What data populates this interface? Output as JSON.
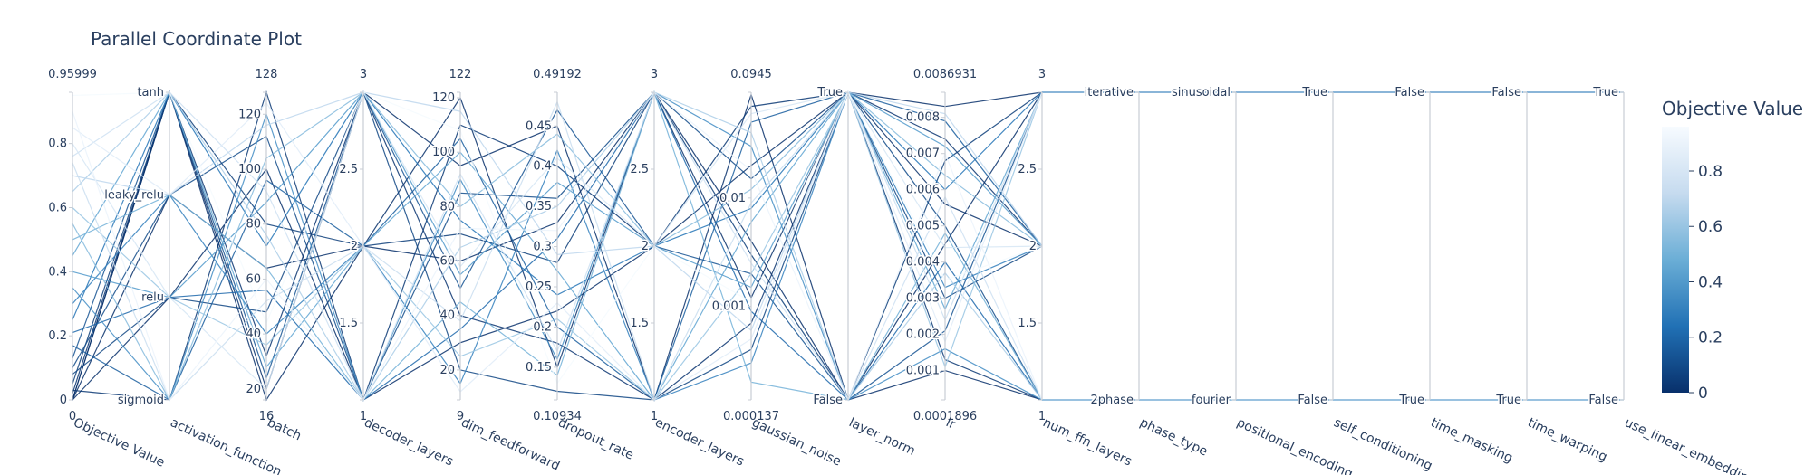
{
  "title": "Parallel Coordinate Plot",
  "chart_data": {
    "type": "parallel_coordinates",
    "title": "Parallel Coordinate Plot",
    "colorbar": {
      "title": "Objective Value",
      "range": [
        0,
        0.95999
      ],
      "ticks": [
        "0",
        "0.2",
        "0.4",
        "0.6",
        "0.8"
      ],
      "colors": [
        "#08306b",
        "#2171b5",
        "#6baed6",
        "#c6dbef",
        "#f7fbff"
      ]
    },
    "dimensions": [
      {
        "label": "Objective Value",
        "kind": "numeric",
        "range": [
          0,
          0.95999
        ],
        "range_labels": [
          "0",
          "0.95999"
        ],
        "ticks": [
          {
            "v": 0,
            "t": "0"
          },
          {
            "v": 0.2,
            "t": "0.2"
          },
          {
            "v": 0.4,
            "t": "0.4"
          },
          {
            "v": 0.6,
            "t": "0.6"
          },
          {
            "v": 0.8,
            "t": "0.8"
          }
        ]
      },
      {
        "label": "activation_function",
        "kind": "categorical",
        "categories": [
          "sigmoid",
          "relu",
          "leaky_relu",
          "tanh"
        ]
      },
      {
        "label": "batch",
        "kind": "numeric",
        "range": [
          16,
          128
        ],
        "range_labels": [
          "16",
          "128"
        ],
        "ticks": [
          {
            "v": 20,
            "t": "20"
          },
          {
            "v": 40,
            "t": "40"
          },
          {
            "v": 60,
            "t": "60"
          },
          {
            "v": 80,
            "t": "80"
          },
          {
            "v": 100,
            "t": "100"
          },
          {
            "v": 120,
            "t": "120"
          }
        ]
      },
      {
        "label": "decoder_layers",
        "kind": "numeric",
        "range": [
          1,
          3
        ],
        "range_labels": [
          "1",
          "3"
        ],
        "ticks": [
          {
            "v": 1.5,
            "t": "1.5"
          },
          {
            "v": 2,
            "t": "2"
          },
          {
            "v": 2.5,
            "t": "2.5"
          }
        ]
      },
      {
        "label": "dim_feedforward",
        "kind": "numeric",
        "range": [
          9,
          122
        ],
        "range_labels": [
          "9",
          "122"
        ],
        "ticks": [
          {
            "v": 20,
            "t": "20"
          },
          {
            "v": 40,
            "t": "40"
          },
          {
            "v": 60,
            "t": "60"
          },
          {
            "v": 80,
            "t": "80"
          },
          {
            "v": 100,
            "t": "100"
          },
          {
            "v": 120,
            "t": "120"
          }
        ]
      },
      {
        "label": "dropout_rate",
        "kind": "numeric",
        "range": [
          0.10934,
          0.49192
        ],
        "range_labels": [
          "0.10934",
          "0.49192"
        ],
        "ticks": [
          {
            "v": 0.15,
            "t": "0.15"
          },
          {
            "v": 0.2,
            "t": "0.2"
          },
          {
            "v": 0.25,
            "t": "0.25"
          },
          {
            "v": 0.3,
            "t": "0.3"
          },
          {
            "v": 0.35,
            "t": "0.35"
          },
          {
            "v": 0.4,
            "t": "0.4"
          },
          {
            "v": 0.45,
            "t": "0.45"
          }
        ]
      },
      {
        "label": "encoder_layers",
        "kind": "numeric",
        "range": [
          1,
          3
        ],
        "range_labels": [
          "1",
          "3"
        ],
        "ticks": [
          {
            "v": 1.5,
            "t": "1.5"
          },
          {
            "v": 2,
            "t": "2"
          },
          {
            "v": 2.5,
            "t": "2.5"
          }
        ]
      },
      {
        "label": "gaussian_noise",
        "kind": "log",
        "range": [
          0.000137,
          0.0945
        ],
        "range_labels": [
          "0.000137",
          "0.0945"
        ],
        "ticks": [
          {
            "v": 0.001,
            "t": "0.001"
          },
          {
            "v": 0.01,
            "t": "0.01"
          }
        ]
      },
      {
        "label": "layer_norm",
        "kind": "categorical",
        "categories": [
          "False",
          "True"
        ]
      },
      {
        "label": "lr",
        "kind": "numeric",
        "range": [
          0.0001896,
          0.0086931
        ],
        "range_labels": [
          "0.0001896",
          "0.0086931"
        ],
        "ticks": [
          {
            "v": 0.001,
            "t": "0.001"
          },
          {
            "v": 0.002,
            "t": "0.002"
          },
          {
            "v": 0.003,
            "t": "0.003"
          },
          {
            "v": 0.004,
            "t": "0.004"
          },
          {
            "v": 0.005,
            "t": "0.005"
          },
          {
            "v": 0.006,
            "t": "0.006"
          },
          {
            "v": 0.007,
            "t": "0.007"
          },
          {
            "v": 0.008,
            "t": "0.008"
          }
        ]
      },
      {
        "label": "num_ffn_layers",
        "kind": "numeric",
        "range": [
          1,
          3
        ],
        "range_labels": [
          "1",
          "3"
        ],
        "ticks": [
          {
            "v": 1.5,
            "t": "1.5"
          },
          {
            "v": 2,
            "t": "2"
          },
          {
            "v": 2.5,
            "t": "2.5"
          }
        ]
      },
      {
        "label": "phase_type",
        "kind": "categorical",
        "categories": [
          "2phase",
          "iterative"
        ]
      },
      {
        "label": "positional_encoding",
        "kind": "categorical",
        "categories": [
          "fourier",
          "sinusoidal"
        ]
      },
      {
        "label": "self_conditioning",
        "kind": "categorical",
        "categories": [
          "False",
          "True"
        ]
      },
      {
        "label": "time_masking",
        "kind": "categorical",
        "categories": [
          "True",
          "False"
        ]
      },
      {
        "label": "time_warping",
        "kind": "categorical",
        "categories": [
          "True",
          "False"
        ]
      },
      {
        "label": "use_linear_embedding",
        "kind": "categorical",
        "categories": [
          "False",
          "True"
        ]
      }
    ],
    "trials": [
      [
        0.0,
        "tanh",
        16,
        2,
        120,
        0.15,
        3,
        0.0012,
        "True",
        0.0083,
        3,
        "",
        "",
        "",
        "",
        "",
        ""
      ],
      [
        0.0,
        "tanh",
        20,
        3,
        95,
        0.45,
        1,
        0.09,
        "False",
        0.001,
        1,
        "",
        "",
        "",
        "",
        "",
        ""
      ],
      [
        0.0,
        "relu",
        100,
        1,
        30,
        0.22,
        2,
        0.02,
        "True",
        0.0056,
        2,
        "",
        "",
        "",
        "",
        "",
        ""
      ],
      [
        0.0,
        "leaky_relu",
        64,
        2,
        60,
        0.33,
        3,
        0.004,
        "False",
        0.0045,
        3,
        "",
        "",
        "",
        "",
        "",
        ""
      ],
      [
        0.02,
        "tanh",
        32,
        3,
        40,
        0.18,
        1,
        0.0007,
        "True",
        0.0074,
        2,
        "",
        "",
        "",
        "",
        "",
        ""
      ],
      [
        0.03,
        "sigmoid",
        128,
        1,
        110,
        0.4,
        2,
        0.07,
        "True",
        0.0013,
        1,
        "",
        "",
        "",
        "",
        "",
        ""
      ],
      [
        0.05,
        "tanh",
        80,
        2,
        70,
        0.28,
        3,
        0.003,
        "False",
        0.0068,
        3,
        "",
        "",
        "",
        "",
        "",
        ""
      ],
      [
        0.08,
        "relu",
        48,
        3,
        20,
        0.12,
        1,
        0.0004,
        "True",
        0.003,
        2,
        "",
        "",
        "",
        "",
        "",
        ""
      ],
      [
        0.1,
        "leaky_relu",
        112,
        1,
        85,
        0.36,
        3,
        0.015,
        "True",
        0.005,
        1,
        "",
        "",
        "",
        "",
        "",
        ""
      ],
      [
        0.13,
        "tanh",
        24,
        3,
        50,
        0.47,
        2,
        0.002,
        "False",
        0.0021,
        3,
        "",
        "",
        "",
        "",
        "",
        ""
      ],
      [
        0.17,
        "sigmoid",
        96,
        2,
        105,
        0.2,
        1,
        0.05,
        "True",
        0.0079,
        2,
        "",
        "",
        "",
        "",
        "",
        ""
      ],
      [
        0.21,
        "relu",
        56,
        1,
        35,
        0.31,
        3,
        0.0009,
        "False",
        0.004,
        1,
        "",
        "",
        "",
        "",
        "",
        ""
      ],
      [
        0.25,
        "tanh",
        72,
        3,
        75,
        0.24,
        2,
        0.008,
        "True",
        0.006,
        3,
        "iterative",
        "sinusoidal",
        "True",
        "False",
        "False",
        "True"
      ],
      [
        0.3,
        "leaky_relu",
        40,
        2,
        15,
        0.42,
        1,
        0.0003,
        "True",
        0.0033,
        2,
        "",
        "",
        "",
        "",
        "",
        ""
      ],
      [
        0.35,
        "sigmoid",
        120,
        1,
        90,
        0.16,
        3,
        0.03,
        "False",
        0.0016,
        1,
        "2phase",
        "fourier",
        "False",
        "True",
        "True",
        "False"
      ],
      [
        0.4,
        "relu",
        88,
        3,
        55,
        0.38,
        2,
        0.0015,
        "True",
        0.0072,
        2,
        "",
        "",
        "",
        "",
        "",
        ""
      ],
      [
        0.45,
        "tanh",
        28,
        2,
        100,
        0.27,
        1,
        0.006,
        "True",
        0.0027,
        3,
        "",
        "",
        "",
        "",
        "",
        ""
      ],
      [
        0.5,
        "leaky_relu",
        64,
        1,
        45,
        0.14,
        3,
        0.0002,
        "False",
        0.0048,
        1,
        "",
        "",
        "",
        "",
        "",
        ""
      ],
      [
        0.55,
        "sigmoid",
        104,
        3,
        80,
        0.44,
        2,
        0.012,
        "True",
        0.0064,
        2,
        "",
        "",
        "",
        "",
        "",
        ""
      ],
      [
        0.6,
        "relu",
        36,
        2,
        25,
        0.21,
        1,
        0.002,
        "True",
        0.0011,
        3,
        "",
        "",
        "",
        "",
        "",
        ""
      ],
      [
        0.65,
        "tanh",
        76,
        1,
        65,
        0.35,
        3,
        0.04,
        "False",
        0.0037,
        1,
        "",
        "",
        "",
        "",
        "",
        ""
      ],
      [
        0.7,
        "leaky_relu",
        116,
        3,
        115,
        0.29,
        2,
        0.0006,
        "True",
        0.0081,
        2,
        "",
        "",
        "",
        "",
        "",
        ""
      ],
      [
        0.74,
        "sigmoid",
        52,
        2,
        38,
        0.48,
        1,
        0.009,
        "True",
        0.0024,
        3,
        "",
        "",
        "",
        "",
        "",
        ""
      ],
      [
        0.76,
        "tanh",
        92,
        1,
        92,
        0.17,
        3,
        0.0025,
        "False",
        0.0058,
        1,
        "",
        "",
        "",
        "",
        "",
        ""
      ],
      [
        0.8,
        "relu",
        20,
        3,
        58,
        0.41,
        2,
        0.06,
        "True",
        0.0044,
        2,
        "",
        "",
        "",
        "",
        "",
        ""
      ],
      [
        0.85,
        "leaky_relu",
        124,
        2,
        12,
        0.23,
        1,
        0.0005,
        "True",
        0.0018,
        3,
        "",
        "",
        "",
        "",
        "",
        ""
      ],
      [
        0.9,
        "sigmoid",
        60,
        1,
        72,
        0.32,
        3,
        0.018,
        "False",
        0.007,
        1,
        "",
        "",
        "",
        "",
        "",
        ""
      ],
      [
        0.95,
        "tanh",
        44,
        3,
        108,
        0.13,
        2,
        0.0011,
        "True",
        0.0035,
        2,
        "",
        "",
        "",
        "",
        "",
        ""
      ]
    ]
  }
}
